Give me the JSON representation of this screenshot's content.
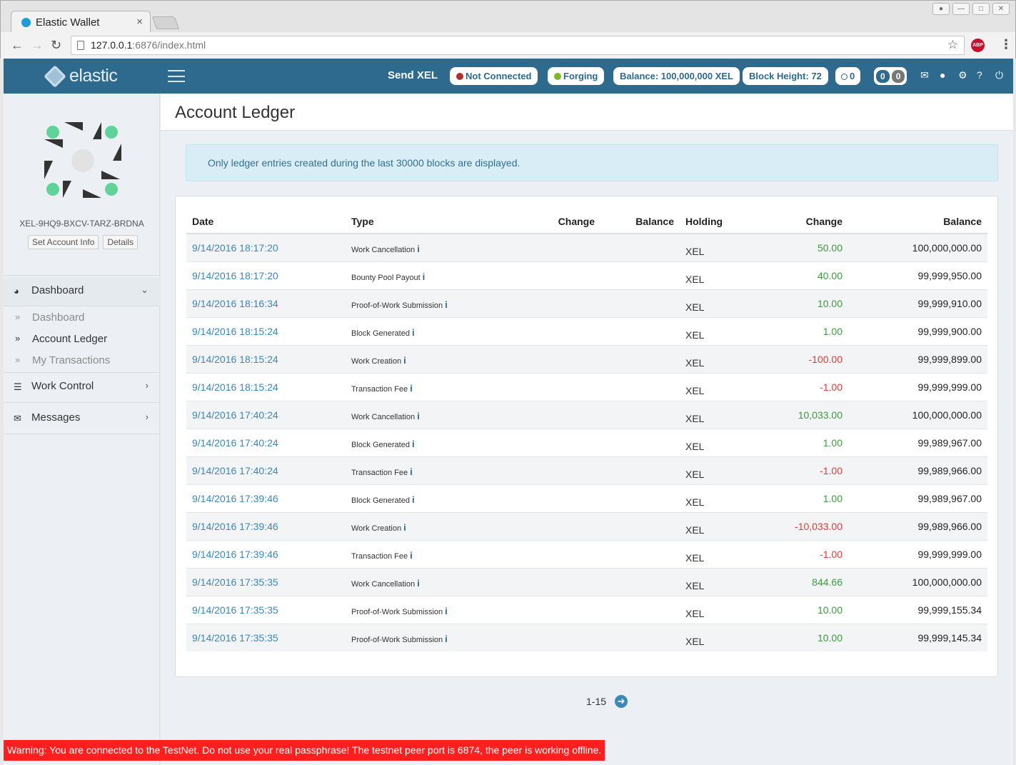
{
  "browser": {
    "tab_title": "Elastic Wallet",
    "tab_close": "×",
    "url_host": "127.0.0.1",
    "url_rest": ":6876/index.html",
    "abp_label": "ABP"
  },
  "header": {
    "logo_text": "elastic",
    "send_label": "Send XEL",
    "status_connection": "Not Connected",
    "status_connection_color": "#b03030",
    "status_forging": "Forging",
    "status_forging_color": "#7fb72a",
    "balance": "Balance: 100,000,000 XEL",
    "block_height": "Block Height: 72",
    "peers_count": "0",
    "badge_a": "0",
    "badge_b": "0"
  },
  "sidebar": {
    "account_id": "XEL-9HQ9-BXCV-TARZ-BRDNA",
    "set_account_info": "Set Account Info",
    "details": "Details",
    "dashboard_group": "Dashboard",
    "sub_items": [
      {
        "label": "Dashboard",
        "active": false
      },
      {
        "label": "Account Ledger",
        "active": true
      },
      {
        "label": "My Transactions",
        "active": false
      }
    ],
    "work_control": "Work Control",
    "messages": "Messages"
  },
  "main": {
    "page_title": "Account Ledger",
    "info_text": "Only ledger entries created during the last 30000 blocks are displayed.",
    "columns": [
      "Date",
      "Type",
      "Change",
      "Balance",
      "Holding",
      "Change",
      "Balance"
    ],
    "rows": [
      {
        "date": "9/14/2016 18:17:20",
        "type": "Work Cancellation",
        "holding": "XEL",
        "change": "50.00",
        "sign": "pos",
        "balance": "100,000,000.00"
      },
      {
        "date": "9/14/2016 18:17:20",
        "type": "Bounty Pool Payout",
        "holding": "XEL",
        "change": "40.00",
        "sign": "pos",
        "balance": "99,999,950.00"
      },
      {
        "date": "9/14/2016 18:16:34",
        "type": "Proof-of-Work Submission",
        "holding": "XEL",
        "change": "10.00",
        "sign": "pos",
        "balance": "99,999,910.00"
      },
      {
        "date": "9/14/2016 18:15:24",
        "type": "Block Generated",
        "holding": "XEL",
        "change": "1.00",
        "sign": "pos",
        "balance": "99,999,900.00"
      },
      {
        "date": "9/14/2016 18:15:24",
        "type": "Work Creation",
        "holding": "XEL",
        "change": "-100.00",
        "sign": "neg",
        "balance": "99,999,899.00"
      },
      {
        "date": "9/14/2016 18:15:24",
        "type": "Transaction Fee",
        "holding": "XEL",
        "change": "-1.00",
        "sign": "neg",
        "balance": "99,999,999.00"
      },
      {
        "date": "9/14/2016 17:40:24",
        "type": "Work Cancellation",
        "holding": "XEL",
        "change": "10,033.00",
        "sign": "pos",
        "balance": "100,000,000.00"
      },
      {
        "date": "9/14/2016 17:40:24",
        "type": "Block Generated",
        "holding": "XEL",
        "change": "1.00",
        "sign": "pos",
        "balance": "99,989,967.00"
      },
      {
        "date": "9/14/2016 17:40:24",
        "type": "Transaction Fee",
        "holding": "XEL",
        "change": "-1.00",
        "sign": "neg",
        "balance": "99,989,966.00"
      },
      {
        "date": "9/14/2016 17:39:46",
        "type": "Block Generated",
        "holding": "XEL",
        "change": "1.00",
        "sign": "pos",
        "balance": "99,989,967.00"
      },
      {
        "date": "9/14/2016 17:39:46",
        "type": "Work Creation",
        "holding": "XEL",
        "change": "-10,033.00",
        "sign": "neg",
        "balance": "99,989,966.00"
      },
      {
        "date": "9/14/2016 17:39:46",
        "type": "Transaction Fee",
        "holding": "XEL",
        "change": "-1.00",
        "sign": "neg",
        "balance": "99,999,999.00"
      },
      {
        "date": "9/14/2016 17:35:35",
        "type": "Work Cancellation",
        "holding": "XEL",
        "change": "844.66",
        "sign": "pos",
        "balance": "100,000,000.00"
      },
      {
        "date": "9/14/2016 17:35:35",
        "type": "Proof-of-Work Submission",
        "holding": "XEL",
        "change": "10.00",
        "sign": "pos",
        "balance": "99,999,155.34"
      },
      {
        "date": "9/14/2016 17:35:35",
        "type": "Proof-of-Work Submission",
        "holding": "XEL",
        "change": "10.00",
        "sign": "pos",
        "balance": "99,999,145.34"
      }
    ],
    "info_icon": "i",
    "pager_text": "1-15"
  },
  "warning": "Warning: You are connected to the TestNet. Do not use your real passphrase! The testnet peer port is 6874, the peer is working offline."
}
